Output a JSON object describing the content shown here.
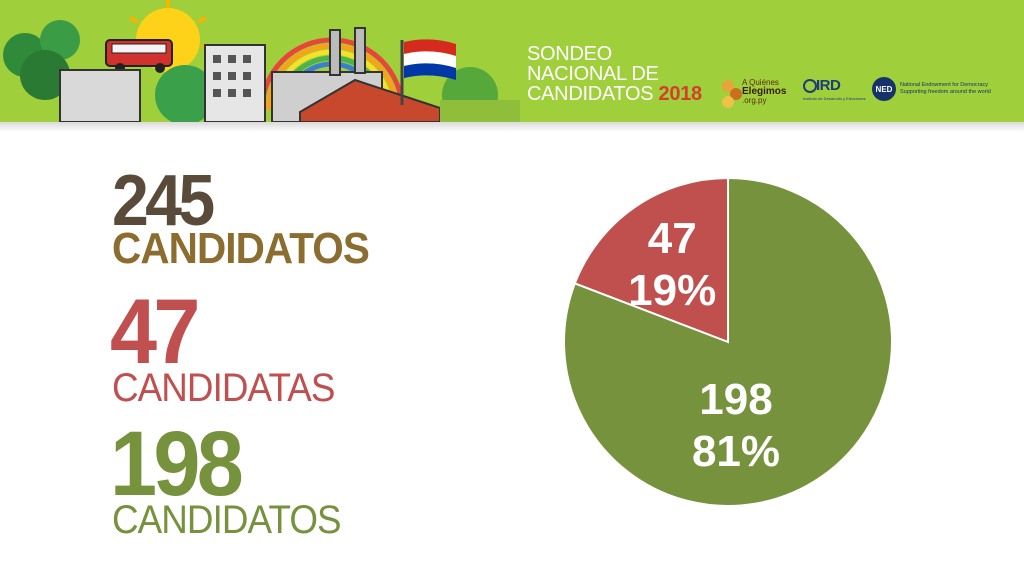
{
  "header": {
    "title_lines": [
      "SONDEO",
      "NACIONAL DE",
      "CANDIDATOS"
    ],
    "year": "2018",
    "background_color": "#9fcf3a",
    "logos": [
      {
        "name": "a-quienes-elegimos-logo",
        "text_small": "A Quiénes",
        "text_main": "Elegimos",
        "text_sub": ".org.py"
      },
      {
        "name": "ird-logo",
        "text": "IRD",
        "text_sub": "Instituto de Desarrollo y Elecciones"
      },
      {
        "name": "ned-logo",
        "badge": "NED",
        "text": "National Endowment for Democracy",
        "text_sub": "Supporting freedom around the world"
      }
    ]
  },
  "stats": {
    "total": {
      "number": "245",
      "label": "CANDIDATOS"
    },
    "women": {
      "number": "47",
      "label": "CANDIDATAS"
    },
    "men": {
      "number": "198",
      "label": "CANDIDATOS"
    }
  },
  "colors": {
    "women": "#c0504d",
    "men": "#76923c",
    "total_number": "#5a4a3a",
    "total_label": "#8c6d30"
  },
  "chart_data": {
    "type": "pie",
    "title": "",
    "slices": [
      {
        "value": 47,
        "percent_label": "19%",
        "count_label": "47",
        "color": "#c0504d"
      },
      {
        "value": 198,
        "percent_label": "81%",
        "count_label": "198",
        "color": "#76923c"
      }
    ],
    "legend": "none"
  }
}
